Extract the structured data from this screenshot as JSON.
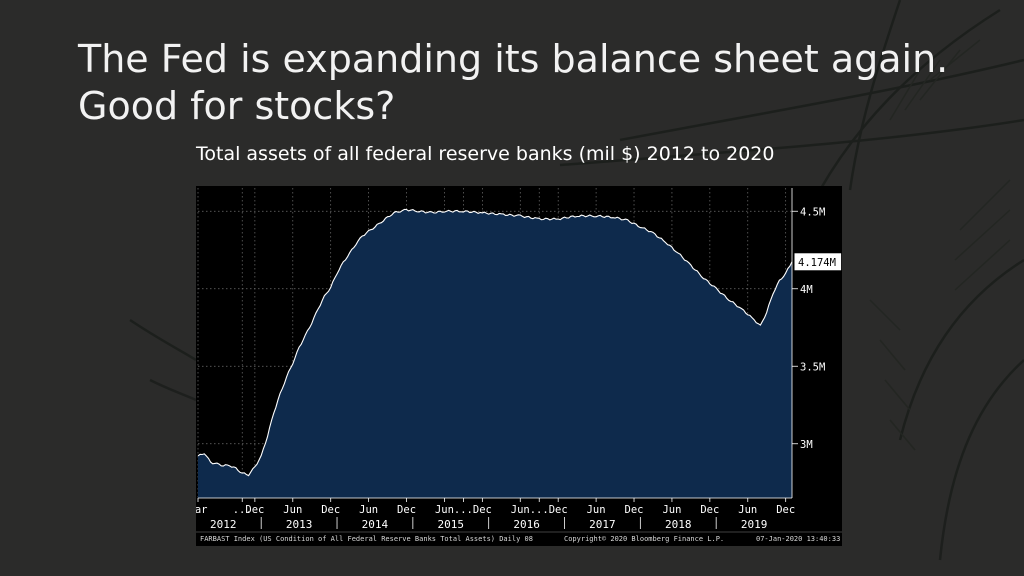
{
  "slide": {
    "title_line1": "The Fed is expanding its balance sheet again.",
    "title_line2": "Good for stocks?",
    "subtitle": "Total assets of all federal reserve banks (mil $) 2012 to 2020"
  },
  "colors": {
    "background": "#2b2b2a",
    "plot_background": "#000000",
    "area_fill": "#0e2a4c",
    "line": "#ffffff"
  },
  "chart_data": {
    "type": "area",
    "title": "Total assets of all federal reserve banks (mil $) 2012 to 2020",
    "xlabel": "",
    "ylabel": "",
    "x_range": [
      "2012-03",
      "2020-01"
    ],
    "ylim": [
      2.65,
      4.65
    ],
    "y_unit": "M",
    "grid": true,
    "y_axis_side": "right",
    "y_ticks": [
      {
        "value": 4.5,
        "label": "4.5M"
      },
      {
        "value": 4.0,
        "label": "4M"
      },
      {
        "value": 3.5,
        "label": "3.5M"
      },
      {
        "value": 3.0,
        "label": "3M"
      }
    ],
    "x_ticks": [
      {
        "date": "2012-03",
        "label": "Mar"
      },
      {
        "date": "2012-10",
        "label": "..."
      },
      {
        "date": "2012-12",
        "label": "Dec"
      },
      {
        "date": "2013-06",
        "label": "Jun"
      },
      {
        "date": "2013-12",
        "label": "Dec"
      },
      {
        "date": "2014-06",
        "label": "Jun"
      },
      {
        "date": "2014-12",
        "label": "Dec"
      },
      {
        "date": "2015-06",
        "label": "Jun"
      },
      {
        "date": "2015-09",
        "label": "..."
      },
      {
        "date": "2015-12",
        "label": "Dec"
      },
      {
        "date": "2016-06",
        "label": "Jun"
      },
      {
        "date": "2016-09",
        "label": "..."
      },
      {
        "date": "2016-12",
        "label": "Dec"
      },
      {
        "date": "2017-06",
        "label": "Jun"
      },
      {
        "date": "2017-12",
        "label": "Dec"
      },
      {
        "date": "2018-06",
        "label": "Jun"
      },
      {
        "date": "2018-12",
        "label": "Dec"
      },
      {
        "date": "2019-06",
        "label": "Jun"
      },
      {
        "date": "2019-12",
        "label": "Dec"
      }
    ],
    "year_labels": [
      {
        "date": "2012-07",
        "label": "2012"
      },
      {
        "date": "2013-07",
        "label": "2013"
      },
      {
        "date": "2014-07",
        "label": "2014"
      },
      {
        "date": "2015-07",
        "label": "2015"
      },
      {
        "date": "2016-07",
        "label": "2016"
      },
      {
        "date": "2017-07",
        "label": "2017"
      },
      {
        "date": "2018-07",
        "label": "2018"
      },
      {
        "date": "2019-07",
        "label": "2019"
      }
    ],
    "year_separators": [
      "2013-01",
      "2014-01",
      "2015-01",
      "2016-01",
      "2017-01",
      "2018-01",
      "2019-01"
    ],
    "series": [
      {
        "name": "FARBAST Index",
        "points": [
          [
            "2012-03",
            2.92
          ],
          [
            "2012-04",
            2.94
          ],
          [
            "2012-05",
            2.88
          ],
          [
            "2012-06",
            2.87
          ],
          [
            "2012-07",
            2.86
          ],
          [
            "2012-08",
            2.86
          ],
          [
            "2012-09",
            2.84
          ],
          [
            "2012-10",
            2.81
          ],
          [
            "2012-11",
            2.8
          ],
          [
            "2012-12",
            2.85
          ],
          [
            "2013-01",
            2.92
          ],
          [
            "2013-02",
            3.05
          ],
          [
            "2013-03",
            3.2
          ],
          [
            "2013-04",
            3.32
          ],
          [
            "2013-05",
            3.43
          ],
          [
            "2013-06",
            3.52
          ],
          [
            "2013-07",
            3.62
          ],
          [
            "2013-08",
            3.7
          ],
          [
            "2013-09",
            3.78
          ],
          [
            "2013-10",
            3.87
          ],
          [
            "2013-11",
            3.95
          ],
          [
            "2013-12",
            4.01
          ],
          [
            "2014-01",
            4.1
          ],
          [
            "2014-02",
            4.17
          ],
          [
            "2014-03",
            4.23
          ],
          [
            "2014-04",
            4.29
          ],
          [
            "2014-05",
            4.34
          ],
          [
            "2014-06",
            4.37
          ],
          [
            "2014-07",
            4.4
          ],
          [
            "2014-08",
            4.43
          ],
          [
            "2014-09",
            4.46
          ],
          [
            "2014-10",
            4.49
          ],
          [
            "2014-11",
            4.5
          ],
          [
            "2014-12",
            4.51
          ],
          [
            "2015-02",
            4.5
          ],
          [
            "2015-04",
            4.49
          ],
          [
            "2015-06",
            4.5
          ],
          [
            "2015-09",
            4.5
          ],
          [
            "2015-12",
            4.49
          ],
          [
            "2016-03",
            4.48
          ],
          [
            "2016-06",
            4.47
          ],
          [
            "2016-09",
            4.45
          ],
          [
            "2016-12",
            4.45
          ],
          [
            "2017-03",
            4.47
          ],
          [
            "2017-06",
            4.47
          ],
          [
            "2017-09",
            4.46
          ],
          [
            "2017-11",
            4.44
          ],
          [
            "2018-01",
            4.4
          ],
          [
            "2018-03",
            4.36
          ],
          [
            "2018-05",
            4.3
          ],
          [
            "2018-07",
            4.23
          ],
          [
            "2018-09",
            4.15
          ],
          [
            "2018-11",
            4.07
          ],
          [
            "2019-01",
            4.0
          ],
          [
            "2019-03",
            3.93
          ],
          [
            "2019-05",
            3.87
          ],
          [
            "2019-07",
            3.8
          ],
          [
            "2019-08",
            3.76
          ],
          [
            "2019-09",
            3.85
          ],
          [
            "2019-10",
            3.97
          ],
          [
            "2019-11",
            4.05
          ],
          [
            "2019-12",
            4.1
          ],
          [
            "2020-01",
            4.174
          ]
        ]
      }
    ],
    "last_value_label": "4.174M",
    "footer_left": "FARBAST Index (US Condition of All Federal Reserve Banks Total Assets) Daily 08",
    "footer_center": "Copyright© 2020 Bloomberg Finance L.P.",
    "footer_right": "07-Jan-2020 13:40:33"
  }
}
